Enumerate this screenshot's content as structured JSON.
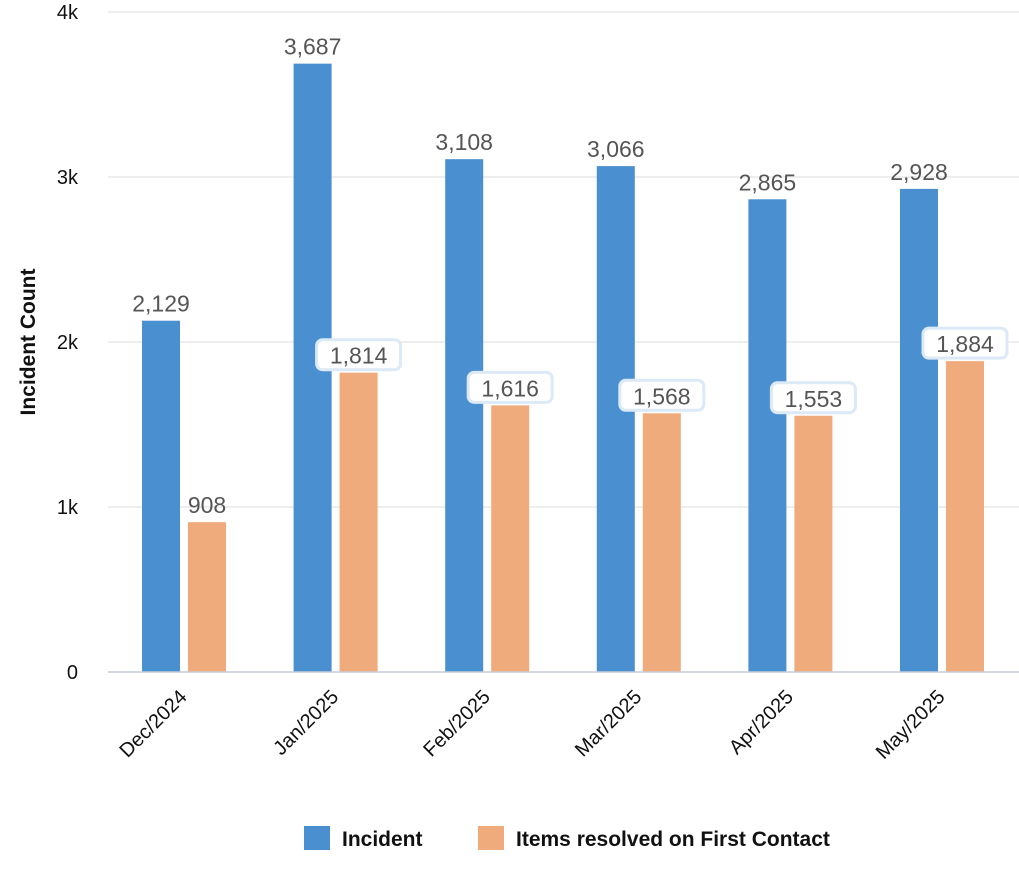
{
  "chart_data": {
    "type": "bar",
    "categories": [
      "Dec/2024",
      "Jan/2025",
      "Feb/2025",
      "Mar/2025",
      "Apr/2025",
      "May/2025"
    ],
    "series": [
      {
        "name": "Incident",
        "color": "#4a90d0",
        "values": [
          2129,
          3687,
          3108,
          3066,
          2865,
          2928
        ],
        "labels": [
          "2,129",
          "3,687",
          "3,108",
          "3,066",
          "2,865",
          "2,928"
        ]
      },
      {
        "name": "Items resolved on First Contact",
        "color": "#f0ab7c",
        "values": [
          908,
          1814,
          1616,
          1568,
          1553,
          1884
        ],
        "labels": [
          "908",
          "1,814",
          "1,616",
          "1,568",
          "1,553",
          "1,884"
        ]
      }
    ],
    "title": "",
    "xlabel": "",
    "ylabel": "Incident Count",
    "ylim": [
      0,
      4000
    ],
    "yticks": [
      0,
      1000,
      2000,
      3000,
      4000
    ],
    "ytick_labels": [
      "0",
      "1k",
      "2k",
      "3k",
      "4k"
    ],
    "grid": true,
    "legend": "bottom"
  }
}
